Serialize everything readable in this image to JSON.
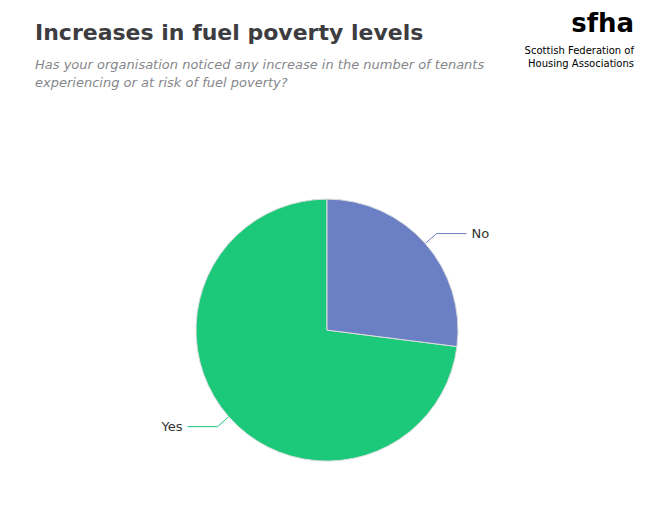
{
  "chart_data": {
    "type": "pie",
    "title": "Increases in fuel poverty levels",
    "subtitle": "Has your organisation noticed any increase in the number of tenants\nexperiencing or at risk of fuel poverty?",
    "annotations": [
      "sfha",
      "Scottish Federation of\nHousing Associations"
    ],
    "categories": [
      "Yes",
      "No"
    ],
    "values": [
      73,
      27
    ],
    "colors": [
      "#1CC97A",
      "#6B80C4"
    ],
    "legend": false
  }
}
